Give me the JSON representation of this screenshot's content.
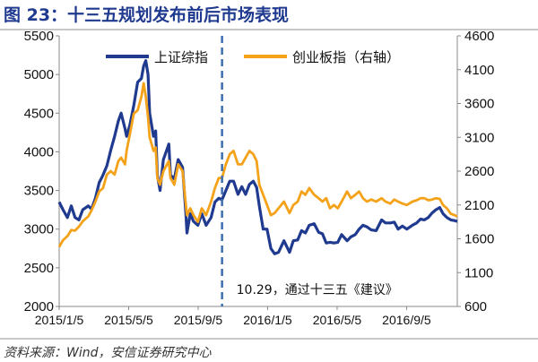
{
  "header": {
    "title": "图 23：十三五规划发布前后市场表现"
  },
  "footer": {
    "source": "资料来源：Wind，安信证券研究中心"
  },
  "chart_data": {
    "type": "line",
    "title": "十三五规划发布前后市场表现",
    "x_tick_labels": [
      "2015/1/5",
      "2015/5/5",
      "2015/9/5",
      "2016/1/5",
      "2016/5/5",
      "2016/9/5"
    ],
    "x_range": [
      "2015-01-05",
      "2016-12-31"
    ],
    "y_left": {
      "ticks": [
        2000,
        2500,
        3000,
        3500,
        4000,
        4500,
        5000,
        5500
      ],
      "ylim": [
        2000,
        5500
      ]
    },
    "y_right": {
      "ticks": [
        600,
        1100,
        1600,
        2100,
        2600,
        3100,
        3600,
        4100,
        4600
      ],
      "ylim": [
        600,
        4600
      ]
    },
    "grid": false,
    "legend_position": "top",
    "series": [
      {
        "name": "上证综指",
        "axis": "left",
        "color": "#1f3a8f",
        "points": [
          [
            "2015-01-05",
            3350
          ],
          [
            "2015-01-12",
            3250
          ],
          [
            "2015-01-20",
            3150
          ],
          [
            "2015-01-27",
            3300
          ],
          [
            "2015-02-03",
            3150
          ],
          [
            "2015-02-10",
            3120
          ],
          [
            "2015-02-17",
            3250
          ],
          [
            "2015-02-27",
            3300
          ],
          [
            "2015-03-05",
            3260
          ],
          [
            "2015-03-12",
            3400
          ],
          [
            "2015-03-19",
            3600
          ],
          [
            "2015-03-26",
            3700
          ],
          [
            "2015-04-02",
            3820
          ],
          [
            "2015-04-09",
            4020
          ],
          [
            "2015-04-16",
            4200
          ],
          [
            "2015-04-23",
            4400
          ],
          [
            "2015-04-28",
            4500
          ],
          [
            "2015-05-05",
            4300
          ],
          [
            "2015-05-08",
            4200
          ],
          [
            "2015-05-14",
            4350
          ],
          [
            "2015-05-21",
            4600
          ],
          [
            "2015-05-28",
            4900
          ],
          [
            "2015-06-04",
            4950
          ],
          [
            "2015-06-08",
            5110
          ],
          [
            "2015-06-12",
            5180
          ],
          [
            "2015-06-16",
            5000
          ],
          [
            "2015-06-19",
            4500
          ],
          [
            "2015-06-26",
            4200
          ],
          [
            "2015-06-30",
            4270
          ],
          [
            "2015-07-03",
            3700
          ],
          [
            "2015-07-08",
            3500
          ],
          [
            "2015-07-14",
            3900
          ],
          [
            "2015-07-24",
            4100
          ],
          [
            "2015-07-27",
            3700
          ],
          [
            "2015-08-03",
            3650
          ],
          [
            "2015-08-10",
            3900
          ],
          [
            "2015-08-18",
            3800
          ],
          [
            "2015-08-24",
            3200
          ],
          [
            "2015-08-26",
            2950
          ],
          [
            "2015-09-01",
            3200
          ],
          [
            "2015-09-07",
            3100
          ],
          [
            "2015-09-15",
            3050
          ],
          [
            "2015-09-22",
            3200
          ],
          [
            "2015-09-30",
            3050
          ],
          [
            "2015-10-09",
            3150
          ],
          [
            "2015-10-16",
            3350
          ],
          [
            "2015-10-23",
            3400
          ],
          [
            "2015-10-29",
            3380
          ],
          [
            "2015-11-05",
            3500
          ],
          [
            "2015-11-12",
            3620
          ],
          [
            "2015-11-19",
            3620
          ],
          [
            "2015-11-27",
            3450
          ],
          [
            "2015-12-04",
            3550
          ],
          [
            "2015-12-11",
            3450
          ],
          [
            "2015-12-18",
            3580
          ],
          [
            "2015-12-25",
            3620
          ],
          [
            "2015-12-31",
            3540
          ],
          [
            "2016-01-05",
            3300
          ],
          [
            "2016-01-12",
            3000
          ],
          [
            "2016-01-19",
            3000
          ],
          [
            "2016-01-26",
            2750
          ],
          [
            "2016-02-02",
            2680
          ],
          [
            "2016-02-09",
            2700
          ],
          [
            "2016-02-19",
            2850
          ],
          [
            "2016-02-29",
            2700
          ],
          [
            "2016-03-07",
            2850
          ],
          [
            "2016-03-15",
            2860
          ],
          [
            "2016-03-22",
            2980
          ],
          [
            "2016-03-29",
            2950
          ],
          [
            "2016-04-05",
            3050
          ],
          [
            "2016-04-14",
            3070
          ],
          [
            "2016-04-22",
            2960
          ],
          [
            "2016-04-29",
            2940
          ],
          [
            "2016-05-06",
            2820
          ],
          [
            "2016-05-13",
            2830
          ],
          [
            "2016-05-20",
            2820
          ],
          [
            "2016-05-27",
            2830
          ],
          [
            "2016-06-03",
            2930
          ],
          [
            "2016-06-13",
            2850
          ],
          [
            "2016-06-20",
            2900
          ],
          [
            "2016-06-28",
            2930
          ],
          [
            "2016-07-05",
            3000
          ],
          [
            "2016-07-12",
            3050
          ],
          [
            "2016-07-19",
            3030
          ],
          [
            "2016-07-27",
            2990
          ],
          [
            "2016-08-05",
            2980
          ],
          [
            "2016-08-15",
            3120
          ],
          [
            "2016-08-22",
            3080
          ],
          [
            "2016-08-31",
            3080
          ],
          [
            "2016-09-07",
            3090
          ],
          [
            "2016-09-14",
            3000
          ],
          [
            "2016-09-22",
            3040
          ],
          [
            "2016-09-30",
            3000
          ],
          [
            "2016-10-10",
            3050
          ],
          [
            "2016-10-18",
            3080
          ],
          [
            "2016-10-25",
            3130
          ],
          [
            "2016-11-01",
            3120
          ],
          [
            "2016-11-08",
            3150
          ],
          [
            "2016-11-15",
            3210
          ],
          [
            "2016-11-22",
            3250
          ],
          [
            "2016-11-29",
            3280
          ],
          [
            "2016-12-05",
            3200
          ],
          [
            "2016-12-12",
            3150
          ],
          [
            "2016-12-19",
            3120
          ],
          [
            "2016-12-26",
            3110
          ],
          [
            "2016-12-31",
            3100
          ]
        ]
      },
      {
        "name": "创业板指（右轴）",
        "axis": "right",
        "color": "#f5a21b",
        "points": [
          [
            "2015-01-05",
            1480
          ],
          [
            "2015-01-12",
            1580
          ],
          [
            "2015-01-20",
            1640
          ],
          [
            "2015-01-27",
            1730
          ],
          [
            "2015-02-03",
            1720
          ],
          [
            "2015-02-10",
            1780
          ],
          [
            "2015-02-17",
            1860
          ],
          [
            "2015-02-27",
            1930
          ],
          [
            "2015-03-05",
            2020
          ],
          [
            "2015-03-12",
            2150
          ],
          [
            "2015-03-19",
            2300
          ],
          [
            "2015-03-26",
            2350
          ],
          [
            "2015-04-02",
            2550
          ],
          [
            "2015-04-09",
            2600
          ],
          [
            "2015-04-16",
            2550
          ],
          [
            "2015-04-23",
            2750
          ],
          [
            "2015-04-28",
            2800
          ],
          [
            "2015-05-05",
            2700
          ],
          [
            "2015-05-08",
            2900
          ],
          [
            "2015-05-14",
            3150
          ],
          [
            "2015-05-21",
            3450
          ],
          [
            "2015-05-28",
            3500
          ],
          [
            "2015-06-04",
            3700
          ],
          [
            "2015-06-08",
            3900
          ],
          [
            "2015-06-12",
            3700
          ],
          [
            "2015-06-16",
            3400
          ],
          [
            "2015-06-19",
            3100
          ],
          [
            "2015-06-26",
            2900
          ],
          [
            "2015-06-30",
            2950
          ],
          [
            "2015-07-03",
            2500
          ],
          [
            "2015-07-08",
            2400
          ],
          [
            "2015-07-14",
            2600
          ],
          [
            "2015-07-24",
            2750
          ],
          [
            "2015-07-27",
            2500
          ],
          [
            "2015-08-03",
            2400
          ],
          [
            "2015-08-10",
            2700
          ],
          [
            "2015-08-18",
            2600
          ],
          [
            "2015-08-24",
            2100
          ],
          [
            "2015-08-26",
            1950
          ],
          [
            "2015-09-01",
            2050
          ],
          [
            "2015-09-07",
            1950
          ],
          [
            "2015-09-15",
            1850
          ],
          [
            "2015-09-22",
            2050
          ],
          [
            "2015-09-30",
            1950
          ],
          [
            "2015-10-09",
            2150
          ],
          [
            "2015-10-16",
            2350
          ],
          [
            "2015-10-23",
            2500
          ],
          [
            "2015-10-29",
            2500
          ],
          [
            "2015-11-05",
            2700
          ],
          [
            "2015-11-12",
            2850
          ],
          [
            "2015-11-19",
            2900
          ],
          [
            "2015-11-27",
            2700
          ],
          [
            "2015-12-04",
            2700
          ],
          [
            "2015-12-11",
            2800
          ],
          [
            "2015-12-18",
            2900
          ],
          [
            "2015-12-25",
            2850
          ],
          [
            "2015-12-31",
            2750
          ],
          [
            "2016-01-05",
            2400
          ],
          [
            "2016-01-12",
            2250
          ],
          [
            "2016-01-19",
            2100
          ],
          [
            "2016-01-26",
            1950
          ],
          [
            "2016-02-02",
            1980
          ],
          [
            "2016-02-09",
            2050
          ],
          [
            "2016-02-19",
            2150
          ],
          [
            "2016-02-29",
            1980
          ],
          [
            "2016-03-07",
            2100
          ],
          [
            "2016-03-15",
            2150
          ],
          [
            "2016-03-22",
            2300
          ],
          [
            "2016-03-29",
            2250
          ],
          [
            "2016-04-05",
            2350
          ],
          [
            "2016-04-14",
            2250
          ],
          [
            "2016-04-22",
            2200
          ],
          [
            "2016-04-29",
            2150
          ],
          [
            "2016-05-06",
            2200
          ],
          [
            "2016-05-13",
            2050
          ],
          [
            "2016-05-20",
            2100
          ],
          [
            "2016-05-27",
            2050
          ],
          [
            "2016-06-03",
            2150
          ],
          [
            "2016-06-13",
            2300
          ],
          [
            "2016-06-20",
            2200
          ],
          [
            "2016-06-28",
            2250
          ],
          [
            "2016-07-05",
            2300
          ],
          [
            "2016-07-12",
            2200
          ],
          [
            "2016-07-19",
            2150
          ],
          [
            "2016-07-27",
            2180
          ],
          [
            "2016-08-05",
            2150
          ],
          [
            "2016-08-15",
            2200
          ],
          [
            "2016-08-22",
            2150
          ],
          [
            "2016-08-31",
            2120
          ],
          [
            "2016-09-07",
            2180
          ],
          [
            "2016-09-14",
            2150
          ],
          [
            "2016-09-22",
            2120
          ],
          [
            "2016-09-30",
            2100
          ],
          [
            "2016-10-10",
            2150
          ],
          [
            "2016-10-18",
            2170
          ],
          [
            "2016-10-25",
            2200
          ],
          [
            "2016-11-01",
            2200
          ],
          [
            "2016-11-08",
            2170
          ],
          [
            "2016-11-15",
            2180
          ],
          [
            "2016-11-22",
            2200
          ],
          [
            "2016-11-29",
            2190
          ],
          [
            "2016-12-05",
            2100
          ],
          [
            "2016-12-12",
            2050
          ],
          [
            "2016-12-19",
            1970
          ],
          [
            "2016-12-26",
            1950
          ],
          [
            "2016-12-31",
            1930
          ]
        ]
      }
    ],
    "annotation": {
      "text": "10.29，通过十三五《建议》",
      "x": "2015-10-29"
    }
  }
}
